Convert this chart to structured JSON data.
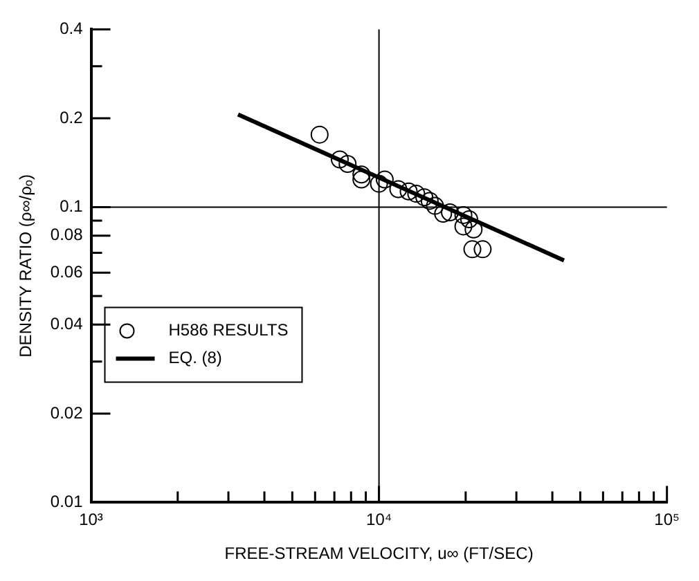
{
  "chart_data": {
    "type": "scatter",
    "xlabel": "FREE-STREAM VELOCITY, u∞ (FT/SEC)",
    "ylabel": "DENSITY RATIO (ρ∞/ρₒ)",
    "log": "xy",
    "xlim": [
      1000,
      100000
    ],
    "ylim": [
      0.01,
      0.4
    ],
    "xticks": [
      {
        "value": 1000,
        "label": "10³"
      },
      {
        "value": 2000,
        "label": null
      },
      {
        "value": 3000,
        "label": null
      },
      {
        "value": 4000,
        "label": null
      },
      {
        "value": 5000,
        "label": null
      },
      {
        "value": 6000,
        "label": null
      },
      {
        "value": 7000,
        "label": null
      },
      {
        "value": 8000,
        "label": null
      },
      {
        "value": 9000,
        "label": null
      },
      {
        "value": 10000,
        "label": "10⁴"
      },
      {
        "value": 20000,
        "label": null
      },
      {
        "value": 30000,
        "label": null
      },
      {
        "value": 40000,
        "label": null
      },
      {
        "value": 50000,
        "label": null
      },
      {
        "value": 60000,
        "label": null
      },
      {
        "value": 70000,
        "label": null
      },
      {
        "value": 80000,
        "label": null
      },
      {
        "value": 90000,
        "label": null
      },
      {
        "value": 100000,
        "label": "10⁵"
      }
    ],
    "yticks": [
      0.01,
      0.02,
      {
        "value": 0.03,
        "label": null
      },
      0.04,
      {
        "value": 0.05,
        "label": null
      },
      0.06,
      {
        "value": 0.07,
        "label": null
      },
      0.08,
      {
        "value": 0.09,
        "label": null
      },
      0.1,
      0.2,
      {
        "value": 0.3,
        "label": null
      },
      0.4
    ],
    "grid": false,
    "legend": "left",
    "ref_lines": [
      {
        "axis": "x",
        "value": 10000
      },
      {
        "axis": "y",
        "value": 0.1
      }
    ],
    "series": [
      {
        "name": "H586 RESULTS",
        "marker": "circle",
        "color": "#000000",
        "x": [
          6220,
          7310,
          7780,
          8690,
          8690,
          10000,
          10470,
          11670,
          12680,
          13470,
          14370,
          15000,
          15650,
          16700,
          17630,
          19640,
          20570,
          19640,
          21310,
          21100,
          22910
        ],
        "values": [
          0.176,
          0.145,
          0.14,
          0.129,
          0.124,
          0.12,
          0.124,
          0.115,
          0.113,
          0.111,
          0.108,
          0.105,
          0.101,
          0.095,
          0.096,
          0.094,
          0.091,
          0.086,
          0.084,
          0.072,
          0.072
        ]
      },
      {
        "name": "EQ. (8)",
        "type": "line",
        "marker": "none",
        "line_style": "solid",
        "color": "#000000",
        "x": [
          3240,
          43900
        ],
        "values": [
          0.206,
          0.066
        ]
      }
    ]
  }
}
